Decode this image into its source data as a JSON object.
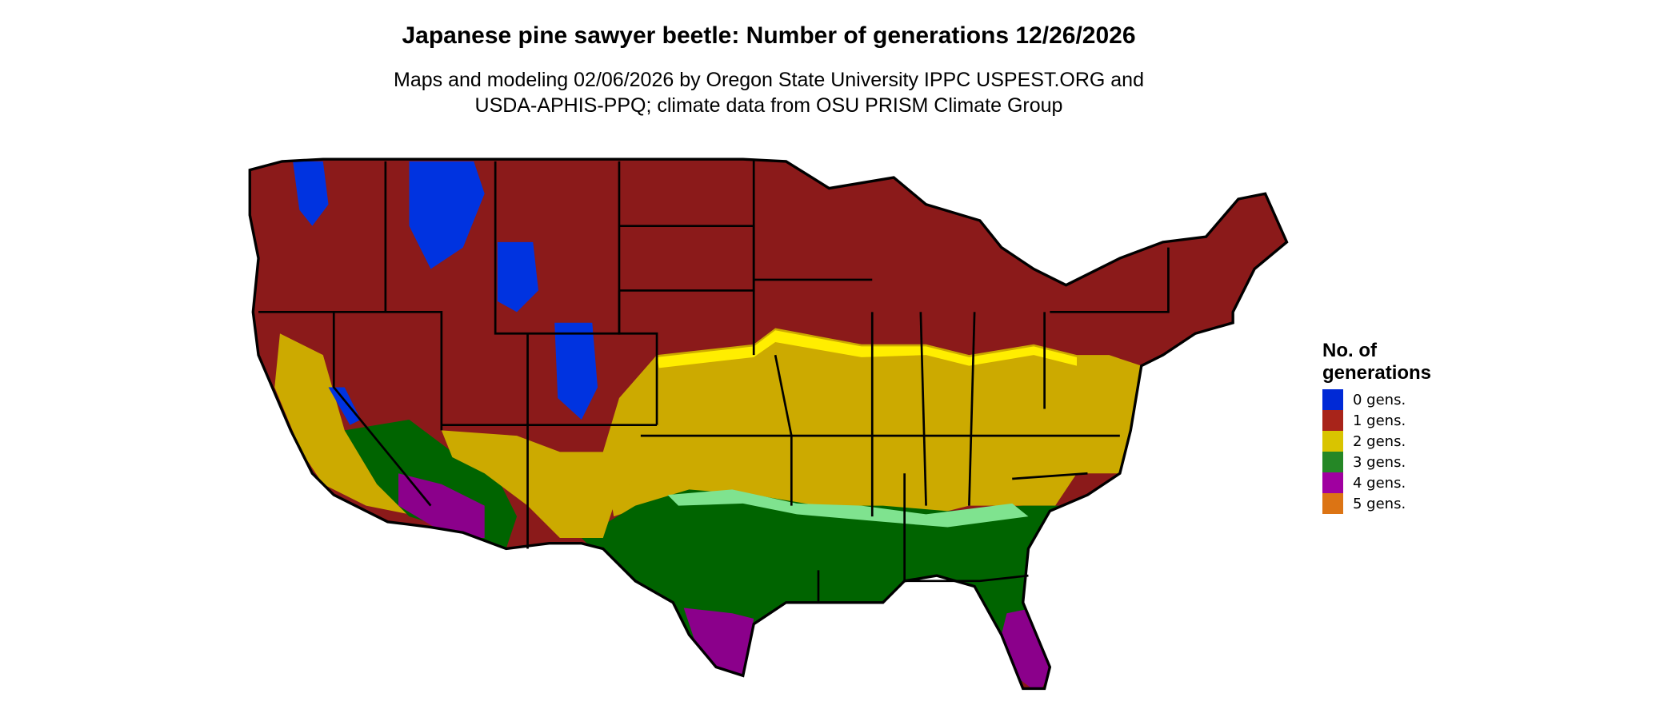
{
  "title": "Japanese pine sawyer beetle: Number of generations 12/26/2026",
  "subtitle_line1": "Maps and modeling 02/06/2026 by Oregon State University IPPC USPEST.ORG and",
  "subtitle_line2": "USDA-APHIS-PPQ; climate data from OSU PRISM Climate Group",
  "legend": {
    "title_line1": "No. of",
    "title_line2": "generations",
    "items": [
      {
        "label": "0 gens.",
        "color": "#0029d6"
      },
      {
        "label": "1 gens.",
        "color": "#a8241a"
      },
      {
        "label": "2 gens.",
        "color": "#d9c400"
      },
      {
        "label": "3 gens.",
        "color": "#258726"
      },
      {
        "label": "4 gens.",
        "color": "#a000a0"
      },
      {
        "label": "5 gens.",
        "color": "#dc7414"
      }
    ]
  },
  "map_colors": {
    "gen0": "#0033e0",
    "gen1": "#8b1a1a",
    "gen2": "#ccaa00",
    "gen2_edge": "#ffee00",
    "gen3": "#006400",
    "gen3_edge": "#7fe38f",
    "gen4": "#8b008b",
    "gen4_edge": "#ff33ff",
    "gen5": "#ee5500"
  }
}
